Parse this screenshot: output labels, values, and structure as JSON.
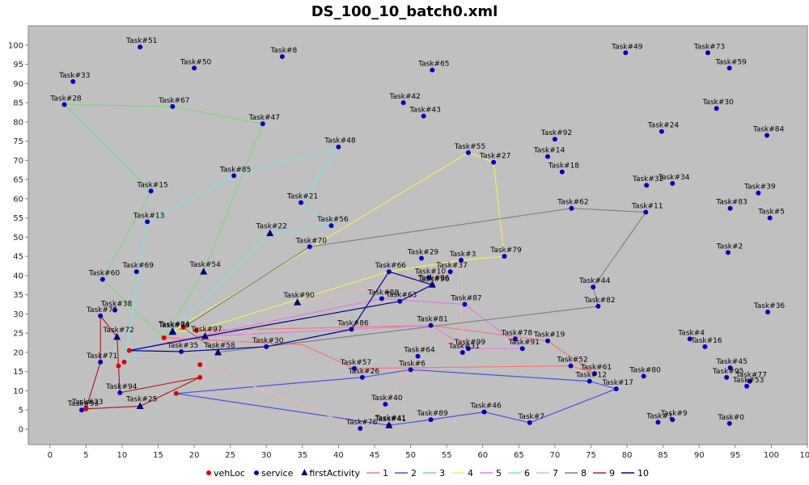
{
  "chart_data": {
    "type": "scatter",
    "title": "DS_100_10_batch0.xml",
    "xlim": [
      -3,
      105
    ],
    "ylim": [
      -4,
      105
    ],
    "xticks": [
      0,
      5,
      10,
      15,
      20,
      25,
      30,
      35,
      40,
      45,
      50,
      55,
      60,
      65,
      70,
      75,
      80,
      85,
      90,
      95,
      100,
      105
    ],
    "yticks": [
      0,
      5,
      10,
      15,
      20,
      25,
      30,
      35,
      40,
      45,
      50,
      55,
      60,
      65,
      70,
      75,
      80,
      85,
      90,
      95,
      100
    ],
    "grid": false,
    "background": "#c0c0c0",
    "legend_position": "bottom",
    "colors": {
      "vehLoc": "#e00000",
      "service": "#0000c8",
      "firstActivity": "#000080",
      "1": "#ff7070",
      "2": "#4b4bf0",
      "3": "#78dc78",
      "4": "#f0f05a",
      "5": "#e678e6",
      "6": "#78e6e6",
      "7": "#f0b4b4",
      "8": "#808080",
      "9": "#b41e1e",
      "10": "#000096"
    },
    "legend": [
      {
        "key": "vehLoc",
        "label": "vehLoc",
        "kind": "circle"
      },
      {
        "key": "service",
        "label": "service",
        "kind": "circle"
      },
      {
        "key": "firstActivity",
        "label": "firstActivity",
        "kind": "triangle"
      },
      {
        "key": "1",
        "label": "1",
        "kind": "line"
      },
      {
        "key": "2",
        "label": "2",
        "kind": "line"
      },
      {
        "key": "3",
        "label": "3",
        "kind": "line"
      },
      {
        "key": "4",
        "label": "4",
        "kind": "line"
      },
      {
        "key": "5",
        "label": "5",
        "kind": "line"
      },
      {
        "key": "6",
        "label": "6",
        "kind": "line"
      },
      {
        "key": "7",
        "label": "7",
        "kind": "line"
      },
      {
        "key": "8",
        "label": "8",
        "kind": "line"
      },
      {
        "key": "9",
        "label": "9",
        "kind": "line"
      },
      {
        "key": "10",
        "label": "10",
        "kind": "line"
      }
    ],
    "services": [
      {
        "label": "Task#51",
        "x": 12.5,
        "y": 99.5
      },
      {
        "label": "Task#8",
        "x": 32.2,
        "y": 97
      },
      {
        "label": "Task#50",
        "x": 20,
        "y": 94
      },
      {
        "label": "Task#33",
        "x": 3.2,
        "y": 90.5
      },
      {
        "label": "Task#28",
        "x": 2,
        "y": 84.5
      },
      {
        "label": "Task#67",
        "x": 17,
        "y": 84
      },
      {
        "label": "Task#47",
        "x": 29.5,
        "y": 79.5
      },
      {
        "label": "Task#65",
        "x": 53,
        "y": 93.5
      },
      {
        "label": "Task#42",
        "x": 49,
        "y": 85
      },
      {
        "label": "Task#43",
        "x": 51.8,
        "y": 81.5
      },
      {
        "label": "Task#49",
        "x": 79.8,
        "y": 98
      },
      {
        "label": "Task#73",
        "x": 91.2,
        "y": 98
      },
      {
        "label": "Task#59",
        "x": 94.2,
        "y": 94
      },
      {
        "label": "Task#30",
        "x": 92.4,
        "y": 83.5
      },
      {
        "label": "Task#24",
        "x": 84.8,
        "y": 77.5
      },
      {
        "label": "Task#84",
        "x": 99.4,
        "y": 76.5
      },
      {
        "label": "Task#92",
        "x": 70,
        "y": 75.5
      },
      {
        "label": "Task#14",
        "x": 69,
        "y": 71
      },
      {
        "label": "Task#18",
        "x": 71,
        "y": 67
      },
      {
        "label": "Task#55",
        "x": 58,
        "y": 72
      },
      {
        "label": "Task#27",
        "x": 61.5,
        "y": 69.5
      },
      {
        "label": "Task#48",
        "x": 40,
        "y": 73.5
      },
      {
        "label": "Task#85",
        "x": 25.5,
        "y": 66
      },
      {
        "label": "Task#15",
        "x": 14,
        "y": 62
      },
      {
        "label": "Task#32",
        "x": 82.7,
        "y": 63.5
      },
      {
        "label": "Task#34",
        "x": 86.3,
        "y": 64
      },
      {
        "label": "Task#39",
        "x": 98.2,
        "y": 61.5
      },
      {
        "label": "Task#83",
        "x": 94.3,
        "y": 57.5
      },
      {
        "label": "Task#5",
        "x": 99.8,
        "y": 55
      },
      {
        "label": "Task#21",
        "x": 34.8,
        "y": 59
      },
      {
        "label": "Task#56",
        "x": 39,
        "y": 53
      },
      {
        "label": "Task#62",
        "x": 72.3,
        "y": 57.5
      },
      {
        "label": "Task#11",
        "x": 82.6,
        "y": 56.5
      },
      {
        "label": "Task#13",
        "x": 13.5,
        "y": 54
      },
      {
        "label": "Task#70",
        "x": 36,
        "y": 47.5
      },
      {
        "label": "Task#2",
        "x": 94,
        "y": 46
      },
      {
        "label": "Task#79",
        "x": 63,
        "y": 45
      },
      {
        "label": "Task#29",
        "x": 51.5,
        "y": 44.5
      },
      {
        "label": "Task#3",
        "x": 57,
        "y": 44
      },
      {
        "label": "Task#37",
        "x": 55.5,
        "y": 41
      },
      {
        "label": "Task#69",
        "x": 12,
        "y": 41
      },
      {
        "label": "Task#66",
        "x": 47,
        "y": 41
      },
      {
        "label": "Task#10",
        "x": 52.5,
        "y": 39.5
      },
      {
        "label": "Task#96",
        "x": 53,
        "y": 37.5
      },
      {
        "label": "Task#60",
        "x": 7.3,
        "y": 39
      },
      {
        "label": "Task#44",
        "x": 75.3,
        "y": 37
      },
      {
        "label": "Task#82",
        "x": 76,
        "y": 32
      },
      {
        "label": "Task#36",
        "x": 99.5,
        "y": 30.5
      },
      {
        "label": "Task#88",
        "x": 46,
        "y": 34
      },
      {
        "label": "Task#63",
        "x": 48.5,
        "y": 33.3
      },
      {
        "label": "Task#87",
        "x": 57.5,
        "y": 32.5
      },
      {
        "label": "Task#38",
        "x": 9,
        "y": 31
      },
      {
        "label": "Task#75",
        "x": 7,
        "y": 29.5
      },
      {
        "label": "Task#81",
        "x": 52.8,
        "y": 27
      },
      {
        "label": "Task#86",
        "x": 41.8,
        "y": 26
      },
      {
        "label": "Task#78",
        "x": 64.5,
        "y": 23.5
      },
      {
        "label": "Task#19",
        "x": 69,
        "y": 23
      },
      {
        "label": "Task#4",
        "x": 88.7,
        "y": 23.5
      },
      {
        "label": "Task#16",
        "x": 90.8,
        "y": 21.5
      },
      {
        "label": "Task#99",
        "x": 58,
        "y": 21
      },
      {
        "label": "Task#31",
        "x": 57.2,
        "y": 20
      },
      {
        "label": "Task#91",
        "x": 65.5,
        "y": 21
      },
      {
        "label": "Task#35",
        "x": 18.2,
        "y": 20.2
      },
      {
        "label": "Task#30b",
        "x": 30,
        "y": 21.5
      },
      {
        "label": "Task#64",
        "x": 51,
        "y": 19
      },
      {
        "label": "Task#52",
        "x": 72.2,
        "y": 16.5
      },
      {
        "label": "Task#61",
        "x": 75.5,
        "y": 14.5
      },
      {
        "label": "Task#12",
        "x": 74.8,
        "y": 12.5
      },
      {
        "label": "Task#45",
        "x": 94.3,
        "y": 16
      },
      {
        "label": "Task#80",
        "x": 82.3,
        "y": 13.8
      },
      {
        "label": "Task#95",
        "x": 93.8,
        "y": 13.5
      },
      {
        "label": "Task#77",
        "x": 97,
        "y": 12.5
      },
      {
        "label": "Task#53",
        "x": 96.6,
        "y": 11.2
      },
      {
        "label": "Task#71",
        "x": 7,
        "y": 17.5
      },
      {
        "label": "Task#57",
        "x": 42.2,
        "y": 15.8
      },
      {
        "label": "Task#6",
        "x": 50,
        "y": 15.5
      },
      {
        "label": "Task#26",
        "x": 43.3,
        "y": 13.5
      },
      {
        "label": "Task#17",
        "x": 78.5,
        "y": 10.5
      },
      {
        "label": "Task#94",
        "x": 9.7,
        "y": 9.5
      },
      {
        "label": "Task#40",
        "x": 46.5,
        "y": 6.5
      },
      {
        "label": "Task#46",
        "x": 60.2,
        "y": 4.5
      },
      {
        "label": "Task#89",
        "x": 52.8,
        "y": 2.5
      },
      {
        "label": "Task#7",
        "x": 66.5,
        "y": 1.7
      },
      {
        "label": "Task#76",
        "x": 43,
        "y": 0.2
      },
      {
        "label": "Task#41",
        "x": 47,
        "y": 1
      },
      {
        "label": "Task#23",
        "x": 5,
        "y": 5.5
      },
      {
        "label": "Task#93",
        "x": 4.4,
        "y": 5
      },
      {
        "label": "Task#1",
        "x": 84.3,
        "y": 1.8
      },
      {
        "label": "Task#9",
        "x": 86.3,
        "y": 2.5
      },
      {
        "label": "Task#0",
        "x": 94.2,
        "y": 1.5
      }
    ],
    "veh_locs": [
      {
        "x": 18.5,
        "y": 26.5
      },
      {
        "x": 20.3,
        "y": 25.7
      },
      {
        "x": 15.8,
        "y": 23.8
      },
      {
        "x": 11,
        "y": 20.5
      },
      {
        "x": 9.5,
        "y": 16.5
      },
      {
        "x": 10.3,
        "y": 17.5
      },
      {
        "x": 20.8,
        "y": 16.8
      },
      {
        "x": 20.8,
        "y": 13.5
      },
      {
        "x": 17.5,
        "y": 9.3
      },
      {
        "x": 5,
        "y": 5.3
      }
    ],
    "first_activities": [
      {
        "label": "Task#24",
        "x": 17,
        "y": 25.5
      },
      {
        "label": "Task#98",
        "x": 17,
        "y": 25.3
      },
      {
        "label": "Task#97",
        "x": 21.5,
        "y": 24.2
      },
      {
        "label": "Task#72",
        "x": 9.3,
        "y": 24
      },
      {
        "label": "Task#58",
        "x": 23.3,
        "y": 20
      },
      {
        "label": "Task#54",
        "x": 21.3,
        "y": 41
      },
      {
        "label": "Task#22",
        "x": 30.5,
        "y": 51
      },
      {
        "label": "Task#90",
        "x": 34.3,
        "y": 33
      },
      {
        "label": "Task#96",
        "x": 53,
        "y": 37.6
      },
      {
        "label": "Task#25",
        "x": 12.5,
        "y": 6
      },
      {
        "label": "Task#41",
        "x": 47,
        "y": 1
      }
    ],
    "routes": [
      {
        "name": "1",
        "points": [
          [
            18.5,
            26.5
          ],
          [
            15.8,
            23.8
          ],
          [
            35,
            22
          ],
          [
            42.2,
            15.8
          ],
          [
            72.2,
            16.5
          ],
          [
            75.5,
            14.5
          ],
          [
            69,
            23
          ],
          [
            52.8,
            27
          ],
          [
            20.3,
            25.7
          ]
        ]
      },
      {
        "name": "2",
        "points": [
          [
            17.5,
            9.3
          ],
          [
            43.3,
            13.5
          ],
          [
            50,
            15.5
          ],
          [
            74.8,
            12.5
          ],
          [
            78.5,
            10.5
          ],
          [
            66.5,
            1.7
          ],
          [
            60.2,
            4.5
          ],
          [
            52.8,
            2.5
          ],
          [
            47,
            1
          ],
          [
            17.5,
            9.3
          ]
        ]
      },
      {
        "name": "3",
        "points": [
          [
            15.8,
            23.8
          ],
          [
            7.3,
            39
          ],
          [
            14,
            62
          ],
          [
            2,
            84.5
          ],
          [
            17,
            84
          ],
          [
            29.5,
            79.5
          ],
          [
            21.3,
            41
          ],
          [
            15.8,
            23.8
          ]
        ]
      },
      {
        "name": "4",
        "points": [
          [
            20.3,
            25.7
          ],
          [
            47,
            41
          ],
          [
            57,
            44
          ],
          [
            63,
            45
          ],
          [
            61.5,
            69.5
          ],
          [
            58,
            72
          ],
          [
            17,
            25.5
          ],
          [
            20.3,
            25.7
          ]
        ]
      },
      {
        "name": "5",
        "points": [
          [
            11,
            20.5
          ],
          [
            46,
            34
          ],
          [
            57.5,
            32.5
          ],
          [
            65.5,
            21
          ],
          [
            58,
            21
          ],
          [
            52.8,
            27
          ],
          [
            21.5,
            24.2
          ],
          [
            11,
            20.5
          ]
        ]
      },
      {
        "name": "6",
        "points": [
          [
            10.3,
            17.5
          ],
          [
            13.5,
            54
          ],
          [
            25.5,
            66
          ],
          [
            40,
            73.5
          ],
          [
            34.8,
            59
          ],
          [
            39,
            53
          ],
          [
            30.5,
            51
          ],
          [
            17,
            25.5
          ],
          [
            10.3,
            17.5
          ]
        ]
      },
      {
        "name": "7",
        "points": [
          [
            20.8,
            16.8
          ],
          [
            43,
            0.2
          ],
          [
            46.5,
            6.5
          ],
          [
            51,
            19
          ],
          [
            52.8,
            27
          ],
          [
            57.2,
            20
          ],
          [
            57,
            44
          ],
          [
            55.5,
            41
          ],
          [
            52.5,
            39.5
          ],
          [
            34.3,
            33
          ],
          [
            20.8,
            16.8
          ]
        ]
      },
      {
        "name": "8",
        "points": [
          [
            18.5,
            26.5
          ],
          [
            36,
            47.5
          ],
          [
            72.3,
            57.5
          ],
          [
            82.6,
            56.5
          ],
          [
            75.3,
            37
          ],
          [
            76,
            32
          ],
          [
            23.3,
            20
          ],
          [
            18.5,
            26.5
          ]
        ]
      },
      {
        "name": "9",
        "points": [
          [
            9.5,
            16.5
          ],
          [
            9.3,
            24
          ],
          [
            7,
            29.5
          ],
          [
            7,
            17.5
          ],
          [
            5,
            5.3
          ],
          [
            12.5,
            6
          ],
          [
            20.8,
            13.5
          ],
          [
            9.7,
            9.5
          ],
          [
            9.5,
            16.5
          ]
        ]
      },
      {
        "name": "10",
        "points": [
          [
            11,
            20.5
          ],
          [
            18.2,
            20.2
          ],
          [
            30,
            21.5
          ],
          [
            41.8,
            26
          ],
          [
            47,
            41
          ],
          [
            53,
            37.6
          ],
          [
            48.5,
            33.3
          ],
          [
            21.5,
            24.2
          ],
          [
            11,
            20.5
          ]
        ]
      }
    ],
    "notes": "Task labels are printed next to each point; points labeled as on the chart."
  }
}
